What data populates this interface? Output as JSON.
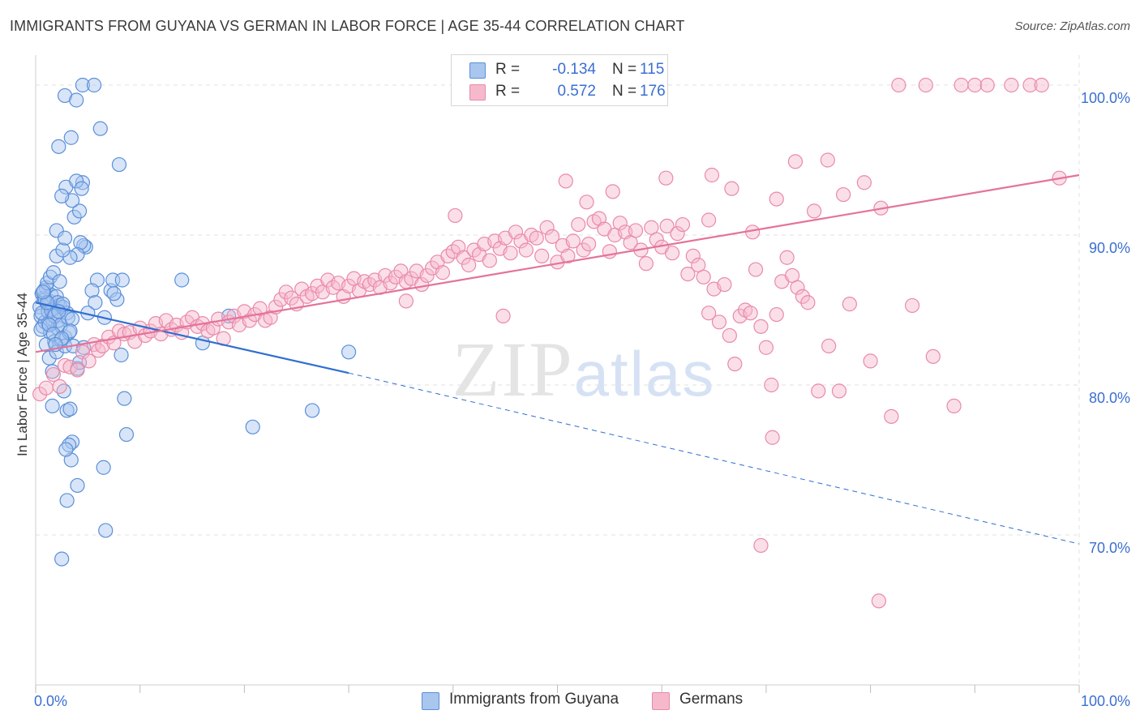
{
  "title": "IMMIGRANTS FROM GUYANA VS GERMAN IN LABOR FORCE | AGE 35-44 CORRELATION CHART",
  "source": "Source: ZipAtlas.com",
  "watermark": "ZIPatlas",
  "colors": {
    "blue_fill": "#a9c6ef",
    "blue_stroke": "#5b8fd9",
    "blue_line": "#2f6fd0",
    "pink_fill": "#f6b9cc",
    "pink_stroke": "#e98aa8",
    "pink_line": "#e4739a",
    "tick_label": "#3b6fd1",
    "grid": "#e2e2e2"
  },
  "legend": {
    "rows": [
      {
        "r_label": "R =",
        "r_value": "-0.134",
        "n_label": "N =",
        "n_value": "115"
      },
      {
        "r_label": "R =",
        "r_value": "0.572",
        "n_label": "N =",
        "n_value": "176"
      }
    ]
  },
  "chart_data": {
    "type": "scatter",
    "title": "IMMIGRANTS FROM GUYANA VS GERMAN IN LABOR FORCE | AGE 35-44 CORRELATION CHART",
    "xlabel": "",
    "ylabel": "In Labor Force | Age 35-44",
    "xlim": [
      0,
      100
    ],
    "ylim": [
      60,
      102
    ],
    "x_tick_labels": [
      "0.0%",
      "100.0%"
    ],
    "y_ticks": [
      70,
      80,
      90,
      100
    ],
    "y_tick_labels": [
      "70.0%",
      "80.0%",
      "90.0%",
      "100.0%"
    ],
    "grid": true,
    "legend_position": "top-center",
    "series": [
      {
        "name": "Immigrants from Guyana",
        "r": -0.134,
        "n": 115,
        "trend": {
          "x0": 0,
          "y0": 85.5,
          "x1": 30,
          "y1": 80.8,
          "dashed_to": {
            "x": 100,
            "y": 69.4
          }
        },
        "points": [
          [
            0.4,
            85.2
          ],
          [
            0.5,
            84.6
          ],
          [
            0.6,
            86.1
          ],
          [
            0.7,
            83.9
          ],
          [
            0.8,
            85.8
          ],
          [
            0.9,
            84.2
          ],
          [
            1.0,
            86.5
          ],
          [
            1.1,
            85.4
          ],
          [
            1.2,
            84.9
          ],
          [
            1.3,
            85.6
          ],
          [
            1.4,
            83.5
          ],
          [
            1.5,
            86.0
          ],
          [
            1.6,
            84.4
          ],
          [
            1.7,
            85.1
          ],
          [
            1.8,
            82.9
          ],
          [
            1.9,
            84.7
          ],
          [
            2.0,
            85.9
          ],
          [
            2.1,
            83.8
          ],
          [
            2.2,
            84.3
          ],
          [
            2.3,
            85.3
          ],
          [
            0.6,
            84.8
          ],
          [
            0.9,
            85.7
          ],
          [
            1.2,
            84.1
          ],
          [
            1.5,
            85.0
          ],
          [
            1.8,
            84.6
          ],
          [
            2.1,
            85.5
          ],
          [
            2.4,
            84.0
          ],
          [
            2.6,
            85.2
          ],
          [
            2.8,
            83.2
          ],
          [
            3.0,
            84.8
          ],
          [
            0.5,
            83.7
          ],
          [
            0.8,
            86.3
          ],
          [
            1.1,
            86.8
          ],
          [
            1.4,
            87.2
          ],
          [
            1.7,
            87.5
          ],
          [
            2.0,
            88.6
          ],
          [
            2.3,
            86.9
          ],
          [
            2.6,
            85.4
          ],
          [
            3.1,
            84.5
          ],
          [
            3.5,
            84.4
          ],
          [
            1.0,
            82.7
          ],
          [
            1.3,
            81.8
          ],
          [
            1.6,
            80.9
          ],
          [
            2.0,
            82.2
          ],
          [
            2.4,
            83.0
          ],
          [
            2.8,
            82.6
          ],
          [
            3.2,
            83.5
          ],
          [
            3.6,
            82.6
          ],
          [
            4.0,
            81.1
          ],
          [
            4.2,
            81.5
          ],
          [
            1.6,
            78.6
          ],
          [
            2.7,
            79.6
          ],
          [
            3.0,
            78.3
          ],
          [
            3.3,
            78.4
          ],
          [
            3.4,
            75.0
          ],
          [
            3.5,
            76.2
          ],
          [
            3.2,
            76.0
          ],
          [
            2.9,
            75.7
          ],
          [
            4.0,
            73.3
          ],
          [
            3.0,
            72.3
          ],
          [
            2.5,
            68.4
          ],
          [
            6.5,
            74.5
          ],
          [
            6.7,
            70.3
          ],
          [
            8.5,
            79.1
          ],
          [
            8.7,
            76.7
          ],
          [
            8.2,
            82.0
          ],
          [
            6.6,
            84.5
          ],
          [
            7.2,
            86.3
          ],
          [
            7.8,
            85.7
          ],
          [
            7.5,
            86.1
          ],
          [
            7.4,
            87.0
          ],
          [
            8.3,
            87.0
          ],
          [
            5.9,
            87.0
          ],
          [
            5.4,
            86.3
          ],
          [
            5.7,
            85.5
          ],
          [
            4.8,
            89.2
          ],
          [
            4.6,
            89.3
          ],
          [
            4.3,
            89.5
          ],
          [
            4.0,
            88.7
          ],
          [
            3.3,
            88.5
          ],
          [
            2.6,
            89.0
          ],
          [
            2.0,
            90.3
          ],
          [
            2.8,
            89.8
          ],
          [
            3.7,
            91.2
          ],
          [
            4.2,
            91.6
          ],
          [
            3.5,
            92.3
          ],
          [
            2.9,
            93.2
          ],
          [
            4.5,
            93.5
          ],
          [
            3.9,
            93.6
          ],
          [
            4.4,
            93.1
          ],
          [
            2.5,
            92.6
          ],
          [
            2.2,
            95.9
          ],
          [
            3.4,
            96.5
          ],
          [
            6.2,
            97.1
          ],
          [
            8.0,
            94.7
          ],
          [
            2.8,
            99.3
          ],
          [
            3.9,
            99.0
          ],
          [
            4.5,
            100.0
          ],
          [
            5.6,
            100.0
          ],
          [
            18.5,
            84.6
          ],
          [
            16.0,
            82.8
          ],
          [
            14.0,
            87.0
          ],
          [
            20.8,
            77.2
          ],
          [
            26.5,
            78.3
          ],
          [
            30.0,
            82.2
          ],
          [
            1.3,
            84.0
          ],
          [
            1.7,
            83.4
          ],
          [
            2.2,
            84.9
          ],
          [
            3.3,
            83.6
          ],
          [
            5.0,
            84.8
          ],
          [
            1.1,
            85.5
          ],
          [
            0.7,
            86.2
          ],
          [
            2.5,
            83.1
          ],
          [
            4.6,
            82.5
          ],
          [
            1.9,
            82.7
          ]
        ]
      },
      {
        "name": "Germans",
        "r": 0.572,
        "n": 176,
        "trend": {
          "x0": 0,
          "y0": 82.2,
          "x1": 100,
          "y1": 94.0
        },
        "points": [
          [
            0.4,
            79.4
          ],
          [
            1.0,
            79.8
          ],
          [
            1.7,
            80.7
          ],
          [
            2.3,
            79.9
          ],
          [
            2.8,
            81.3
          ],
          [
            3.3,
            81.2
          ],
          [
            4.0,
            81.0
          ],
          [
            4.5,
            82.2
          ],
          [
            5.1,
            81.6
          ],
          [
            5.6,
            82.7
          ],
          [
            6.0,
            82.3
          ],
          [
            6.4,
            82.6
          ],
          [
            7.0,
            83.2
          ],
          [
            7.5,
            82.8
          ],
          [
            8.0,
            83.6
          ],
          [
            8.5,
            83.4
          ],
          [
            9.0,
            83.5
          ],
          [
            9.5,
            82.9
          ],
          [
            10.0,
            83.8
          ],
          [
            10.5,
            83.3
          ],
          [
            11.0,
            83.6
          ],
          [
            11.5,
            84.1
          ],
          [
            12.0,
            83.4
          ],
          [
            12.5,
            84.3
          ],
          [
            13.0,
            83.7
          ],
          [
            13.5,
            84.0
          ],
          [
            14.0,
            83.5
          ],
          [
            14.5,
            84.2
          ],
          [
            15.0,
            84.5
          ],
          [
            15.5,
            83.9
          ],
          [
            16.0,
            84.1
          ],
          [
            16.5,
            83.6
          ],
          [
            17.0,
            83.8
          ],
          [
            17.5,
            84.4
          ],
          [
            18.0,
            83.1
          ],
          [
            18.5,
            84.2
          ],
          [
            19.0,
            84.6
          ],
          [
            19.5,
            84.0
          ],
          [
            20.0,
            84.9
          ],
          [
            20.5,
            84.3
          ],
          [
            21.0,
            84.7
          ],
          [
            21.5,
            85.1
          ],
          [
            22.0,
            84.3
          ],
          [
            22.5,
            84.5
          ],
          [
            23.0,
            85.2
          ],
          [
            23.5,
            85.7
          ],
          [
            24.0,
            86.2
          ],
          [
            24.5,
            85.8
          ],
          [
            25.0,
            85.4
          ],
          [
            25.5,
            86.4
          ],
          [
            26.0,
            85.9
          ],
          [
            26.5,
            86.1
          ],
          [
            27.0,
            86.6
          ],
          [
            27.5,
            86.2
          ],
          [
            28.0,
            87.0
          ],
          [
            28.5,
            86.5
          ],
          [
            29.0,
            86.8
          ],
          [
            29.5,
            85.9
          ],
          [
            30.0,
            86.6
          ],
          [
            30.5,
            87.1
          ],
          [
            31.0,
            86.3
          ],
          [
            31.5,
            86.9
          ],
          [
            32.0,
            86.7
          ],
          [
            32.5,
            87.0
          ],
          [
            33.0,
            86.5
          ],
          [
            33.5,
            87.3
          ],
          [
            34.0,
            86.8
          ],
          [
            34.5,
            87.2
          ],
          [
            35.0,
            87.6
          ],
          [
            35.5,
            86.9
          ],
          [
            36.0,
            87.1
          ],
          [
            36.5,
            87.6
          ],
          [
            37.0,
            86.7
          ],
          [
            37.5,
            87.3
          ],
          [
            38.0,
            87.8
          ],
          [
            38.5,
            88.2
          ],
          [
            39.0,
            87.5
          ],
          [
            39.5,
            88.6
          ],
          [
            40.0,
            88.9
          ],
          [
            40.5,
            89.2
          ],
          [
            41.0,
            88.5
          ],
          [
            41.5,
            88.0
          ],
          [
            42.0,
            89.0
          ],
          [
            42.5,
            88.7
          ],
          [
            43.0,
            89.4
          ],
          [
            43.5,
            88.3
          ],
          [
            44.0,
            89.6
          ],
          [
            44.5,
            89.1
          ],
          [
            45.0,
            89.8
          ],
          [
            45.5,
            88.8
          ],
          [
            46.0,
            90.2
          ],
          [
            46.5,
            89.6
          ],
          [
            47.0,
            89.0
          ],
          [
            47.5,
            90.0
          ],
          [
            48.0,
            89.8
          ],
          [
            48.5,
            88.6
          ],
          [
            49.0,
            90.5
          ],
          [
            49.5,
            89.9
          ],
          [
            50.0,
            88.2
          ],
          [
            50.5,
            89.3
          ],
          [
            51.0,
            88.6
          ],
          [
            51.5,
            89.6
          ],
          [
            52.0,
            90.7
          ],
          [
            52.5,
            89.0
          ],
          [
            53.0,
            89.4
          ],
          [
            53.5,
            90.9
          ],
          [
            54.0,
            91.1
          ],
          [
            54.5,
            90.4
          ],
          [
            55.0,
            88.9
          ],
          [
            55.5,
            90.0
          ],
          [
            56.0,
            90.8
          ],
          [
            56.5,
            90.2
          ],
          [
            57.0,
            89.5
          ],
          [
            57.5,
            90.3
          ],
          [
            58.0,
            89.0
          ],
          [
            58.5,
            88.1
          ],
          [
            59.0,
            90.5
          ],
          [
            59.5,
            89.7
          ],
          [
            60.0,
            89.2
          ],
          [
            60.5,
            90.6
          ],
          [
            61.0,
            88.8
          ],
          [
            61.5,
            90.1
          ],
          [
            62.0,
            90.7
          ],
          [
            62.5,
            87.4
          ],
          [
            63.0,
            88.6
          ],
          [
            63.5,
            88.0
          ],
          [
            64.0,
            87.2
          ],
          [
            64.5,
            84.8
          ],
          [
            65.0,
            86.4
          ],
          [
            65.5,
            84.2
          ],
          [
            66.0,
            86.7
          ],
          [
            66.5,
            83.3
          ],
          [
            67.0,
            81.4
          ],
          [
            67.5,
            84.6
          ],
          [
            68.0,
            85.0
          ],
          [
            68.5,
            84.8
          ],
          [
            69.0,
            87.7
          ],
          [
            69.5,
            83.9
          ],
          [
            70.0,
            82.5
          ],
          [
            70.5,
            80.0
          ],
          [
            71.0,
            84.7
          ],
          [
            71.5,
            86.9
          ],
          [
            72.0,
            88.5
          ],
          [
            72.5,
            87.3
          ],
          [
            73.0,
            86.5
          ],
          [
            73.5,
            85.9
          ],
          [
            74.0,
            85.5
          ],
          [
            75.0,
            79.6
          ],
          [
            76.0,
            82.6
          ],
          [
            77.0,
            79.6
          ],
          [
            78.0,
            85.4
          ],
          [
            80.0,
            81.6
          ],
          [
            82.0,
            77.9
          ],
          [
            84.0,
            85.3
          ],
          [
            86.0,
            81.9
          ],
          [
            88.0,
            78.6
          ],
          [
            35.5,
            85.6
          ],
          [
            40.2,
            91.3
          ],
          [
            44.8,
            84.6
          ],
          [
            50.8,
            93.6
          ],
          [
            52.8,
            92.2
          ],
          [
            55.3,
            92.9
          ],
          [
            60.4,
            93.8
          ],
          [
            64.5,
            91.0
          ],
          [
            64.8,
            94.0
          ],
          [
            66.7,
            93.1
          ],
          [
            68.7,
            90.2
          ],
          [
            71.0,
            92.4
          ],
          [
            72.8,
            94.9
          ],
          [
            74.6,
            91.6
          ],
          [
            75.9,
            95.0
          ],
          [
            77.4,
            92.7
          ],
          [
            79.4,
            93.5
          ],
          [
            81.0,
            91.8
          ],
          [
            70.6,
            76.5
          ],
          [
            69.5,
            69.3
          ],
          [
            80.8,
            65.6
          ],
          [
            82.7,
            100.0
          ],
          [
            85.3,
            100.0
          ],
          [
            88.7,
            100.0
          ],
          [
            90.0,
            100.0
          ],
          [
            91.2,
            100.0
          ],
          [
            93.5,
            100.0
          ],
          [
            95.3,
            100.0
          ],
          [
            96.4,
            100.0
          ],
          [
            98.1,
            93.8
          ]
        ]
      }
    ]
  }
}
